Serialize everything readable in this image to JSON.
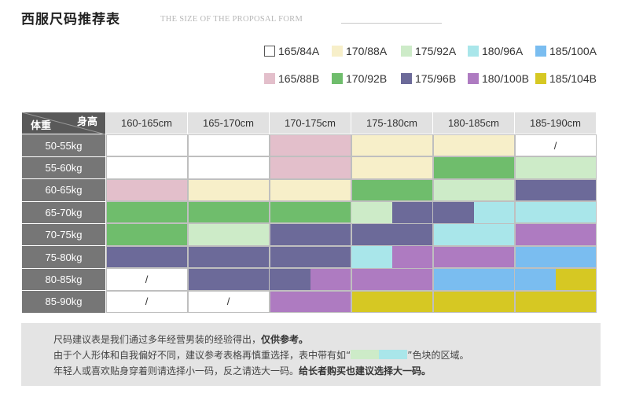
{
  "title": "西服尺码推荐表",
  "subtitle": "THE SIZE OF THE PROPOSAL FORM",
  "legend": [
    {
      "key": "a",
      "label": "165/84A",
      "color": "#ffffff",
      "border": "#555555"
    },
    {
      "key": "b",
      "label": "170/88A",
      "color": "#f7efc9"
    },
    {
      "key": "c",
      "label": "175/92A",
      "color": "#cdebc8"
    },
    {
      "key": "d",
      "label": "180/96A",
      "color": "#a9e6ea"
    },
    {
      "key": "e",
      "label": "185/100A",
      "color": "#7abdf0"
    },
    {
      "key": "f",
      "label": "165/88B",
      "color": "#e3bfcb"
    },
    {
      "key": "g",
      "label": "170/92B",
      "color": "#6fbd6c"
    },
    {
      "key": "h",
      "label": "175/96B",
      "color": "#6c6a99"
    },
    {
      "key": "i",
      "label": "180/100B",
      "color": "#ae7bc1"
    },
    {
      "key": "j",
      "label": "185/104B",
      "color": "#d6c823"
    }
  ],
  "table": {
    "corner_height": "身高",
    "corner_weight": "体重",
    "columns": [
      "160-165cm",
      "165-170cm",
      "170-175cm",
      "175-180cm",
      "180-185cm",
      "185-190cm"
    ],
    "rows": [
      {
        "label": "50-55kg",
        "cells": [
          [
            "a"
          ],
          [
            "a"
          ],
          [
            "f"
          ],
          [
            "b"
          ],
          [
            "b"
          ],
          [
            "a",
            "/"
          ]
        ]
      },
      {
        "label": "55-60kg",
        "cells": [
          [
            "a"
          ],
          [
            "a"
          ],
          [
            "f"
          ],
          [
            "b"
          ],
          [
            "g"
          ],
          [
            "c"
          ]
        ]
      },
      {
        "label": "60-65kg",
        "cells": [
          [
            "f"
          ],
          [
            "b"
          ],
          [
            "b"
          ],
          [
            "g"
          ],
          [
            "c"
          ],
          [
            "h"
          ]
        ]
      },
      {
        "label": "65-70kg",
        "cells": [
          [
            "g"
          ],
          [
            "g"
          ],
          [
            "g"
          ],
          [
            "c",
            "h"
          ],
          [
            "h",
            "d"
          ],
          [
            "d"
          ]
        ]
      },
      {
        "label": "70-75kg",
        "cells": [
          [
            "g"
          ],
          [
            "c"
          ],
          [
            "h"
          ],
          [
            "h"
          ],
          [
            "d"
          ],
          [
            "i"
          ]
        ]
      },
      {
        "label": "75-80kg",
        "cells": [
          [
            "h"
          ],
          [
            "h"
          ],
          [
            "h"
          ],
          [
            "d",
            "i"
          ],
          [
            "i"
          ],
          [
            "e"
          ]
        ]
      },
      {
        "label": "80-85kg",
        "cells": [
          [
            "a",
            "/"
          ],
          [
            "h"
          ],
          [
            "h",
            "i"
          ],
          [
            "i"
          ],
          [
            "e"
          ],
          [
            "e",
            "j"
          ]
        ]
      },
      {
        "label": "85-90kg",
        "cells": [
          [
            "a",
            "/"
          ],
          [
            "a",
            "/"
          ],
          [
            "i"
          ],
          [
            "j"
          ],
          [
            "j"
          ],
          [
            "j"
          ]
        ]
      }
    ]
  },
  "note": {
    "line1_a": "尺码建议表是我们通过多年经营男装的经验得出，",
    "line1_b": "仅供参考。",
    "line2_a": "由于个人形体和自我偏好不同，建议参考表格再慎重选择，表中带有如“",
    "line2_b": "”色块的区域。",
    "line2_swatch_colors": [
      "#cdebc8",
      "#a9e6ea"
    ],
    "line3_a": "年轻人或喜欢贴身穿着则请选择小一码，反之请选大一码。",
    "line3_b": "给长者购买也建议选择大一码。"
  }
}
